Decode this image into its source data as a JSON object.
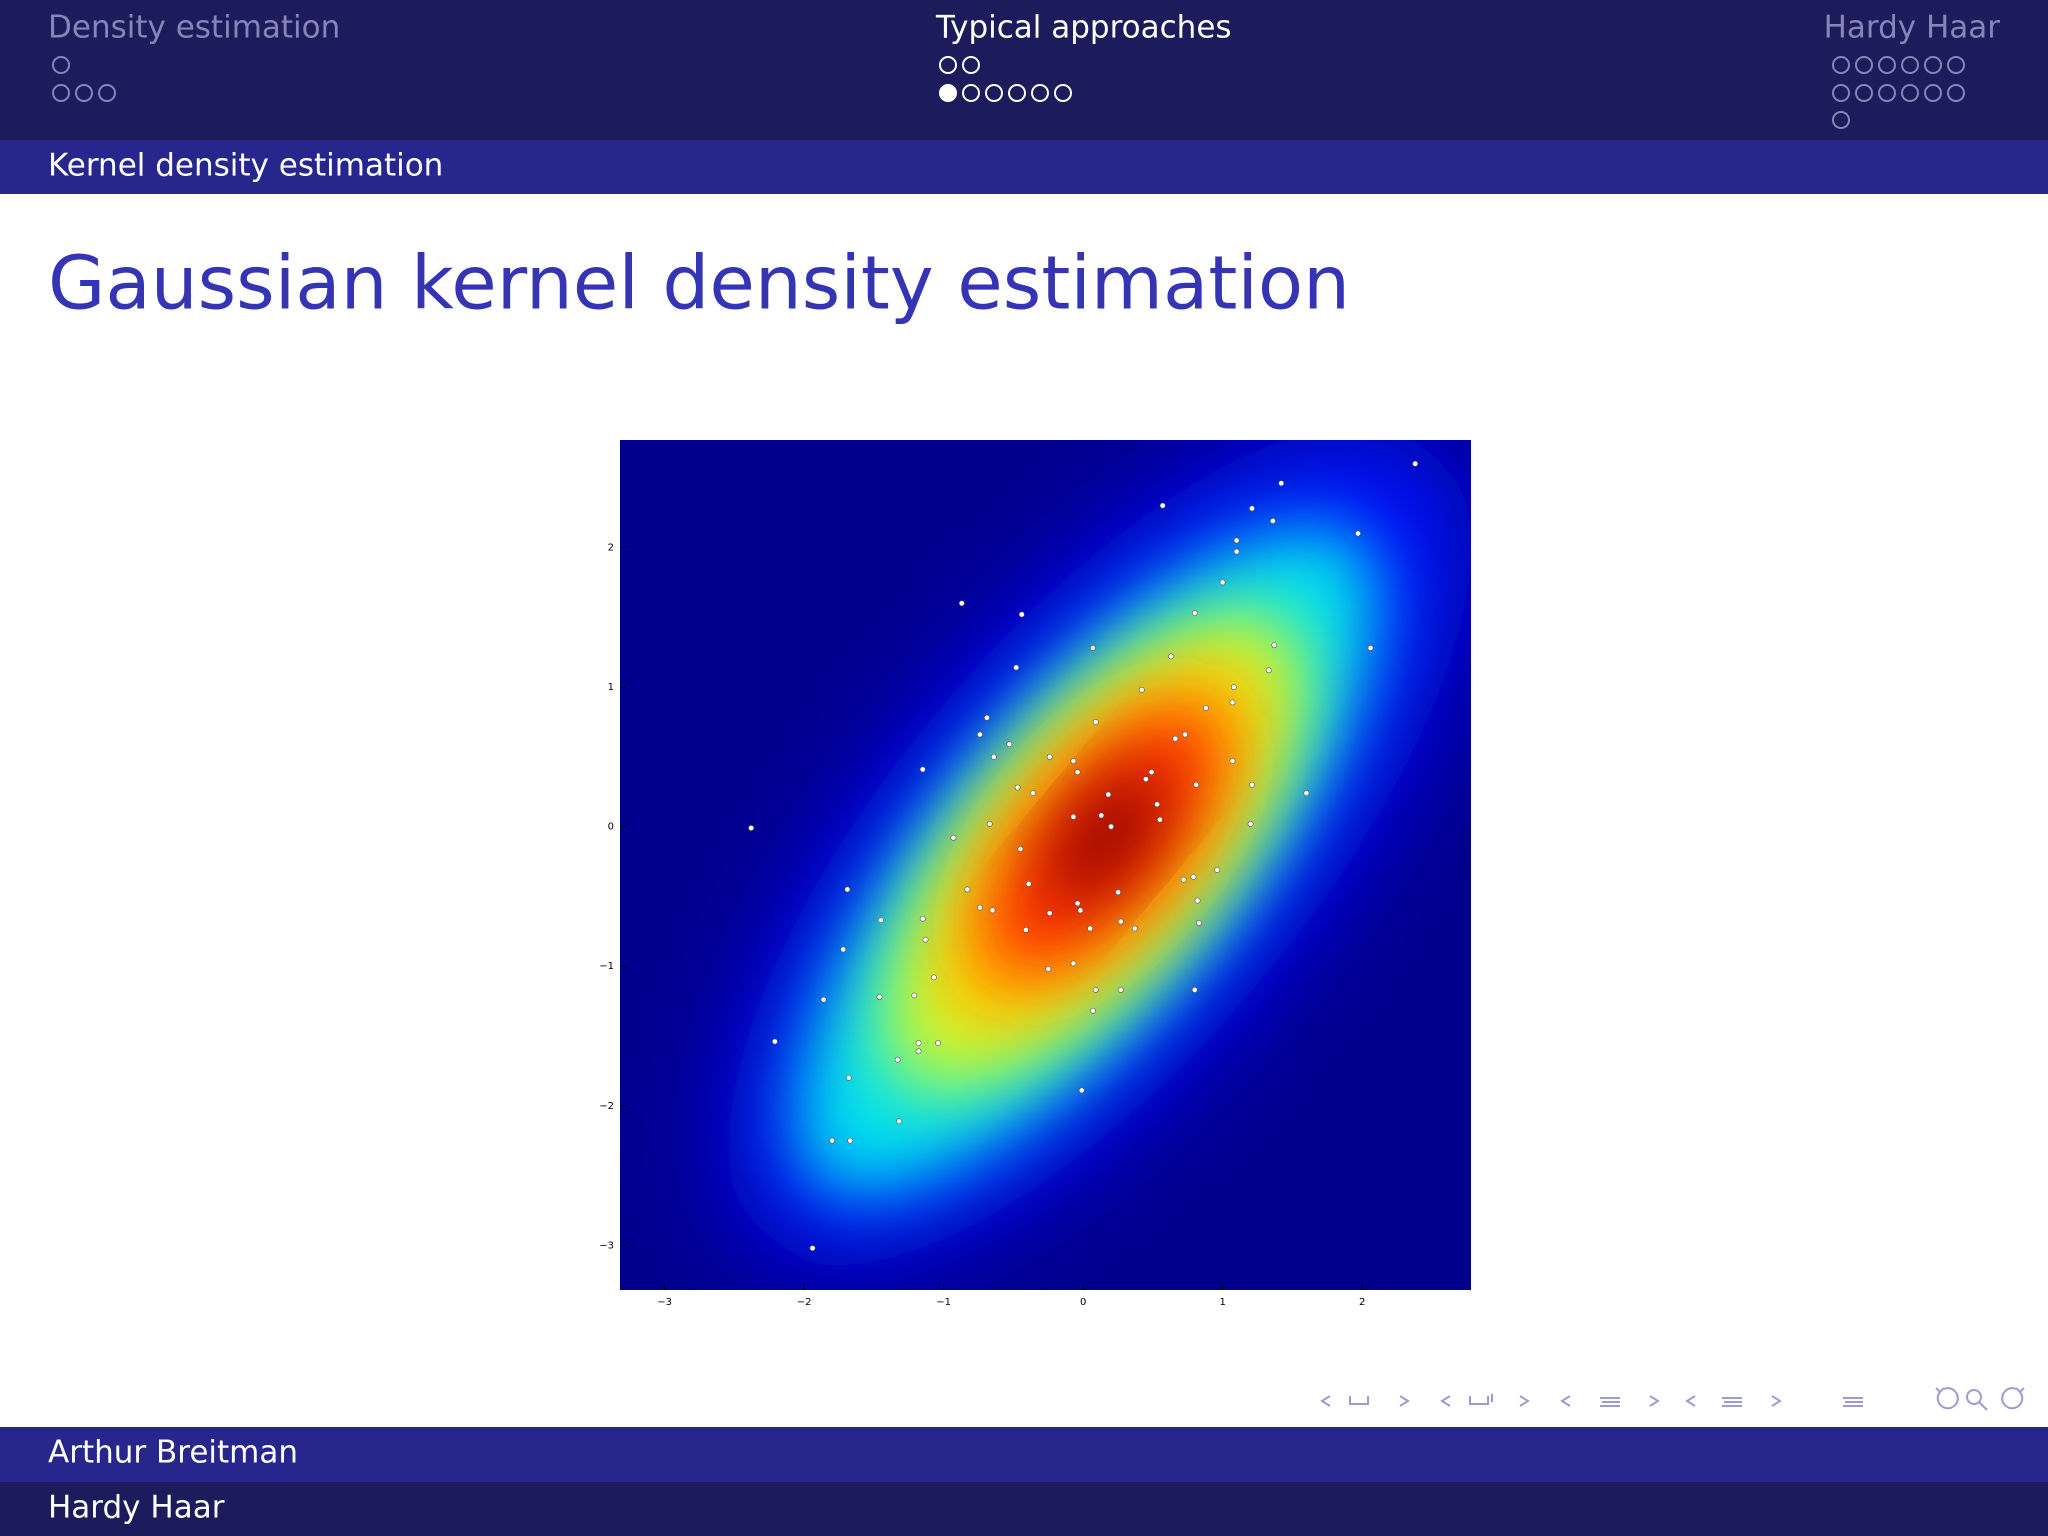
{
  "header": {
    "sections": [
      "Density estimation",
      "Typical approaches",
      "Hardy Haar"
    ],
    "subsection": "Kernel density estimation"
  },
  "slide": {
    "title": "Gaussian kernel density estimation"
  },
  "footer": {
    "author": "Arthur Breitman",
    "institute": "Hardy Haar"
  },
  "chart_data": {
    "type": "scatter",
    "x": [
      0.57,
      1.21,
      1.42,
      1.36,
      2.38,
      1.97,
      1.1,
      1.1,
      1.0,
      -0.87,
      -0.44,
      0.8,
      0.07,
      1.37,
      2.06,
      0.63,
      1.33,
      -0.48,
      0.42,
      1.08,
      1.07,
      0.88,
      -0.69,
      0.09,
      -0.74,
      0.73,
      0.66,
      -0.53,
      -0.64,
      -0.24,
      -0.07,
      1.07,
      -1.15,
      -0.04,
      0.49,
      0.45,
      -0.47,
      -0.36,
      0.81,
      1.21,
      1.6,
      0.18,
      0.53,
      0.13,
      -0.07,
      0.55,
      0.2,
      -2.38,
      -0.67,
      1.2,
      -0.93,
      -0.45,
      0.96,
      0.72,
      0.79,
      -0.39,
      -1.69,
      -0.83,
      0.25,
      -0.04,
      0.82,
      -0.02,
      -0.74,
      -0.65,
      -0.24,
      -1.45,
      -1.15,
      0.27,
      0.83,
      0.05,
      0.37,
      -0.41,
      -1.13,
      -1.72,
      -0.07,
      -0.25,
      -1.07,
      0.09,
      0.27,
      0.8,
      -1.21,
      -1.46,
      -1.86,
      0.07,
      -2.21,
      -1.18,
      -1.04,
      -1.18,
      -1.33,
      -1.68,
      -0.01,
      -1.32,
      -1.8,
      -1.67,
      -1.94
    ],
    "values": [
      2.3,
      2.28,
      2.46,
      2.19,
      2.6,
      2.1,
      2.05,
      1.97,
      1.75,
      1.6,
      1.52,
      1.53,
      1.28,
      1.3,
      1.28,
      1.22,
      1.12,
      1.14,
      0.98,
      1.0,
      0.89,
      0.85,
      0.78,
      0.75,
      0.66,
      0.66,
      0.63,
      0.59,
      0.5,
      0.5,
      0.47,
      0.47,
      0.41,
      0.39,
      0.39,
      0.34,
      0.28,
      0.24,
      0.3,
      0.3,
      0.24,
      0.23,
      0.16,
      0.08,
      0.07,
      0.05,
      0.0,
      -0.01,
      0.02,
      0.02,
      -0.08,
      -0.16,
      -0.31,
      -0.38,
      -0.36,
      -0.41,
      -0.45,
      -0.45,
      -0.47,
      -0.55,
      -0.53,
      -0.6,
      -0.58,
      -0.6,
      -0.62,
      -0.67,
      -0.66,
      -0.68,
      -0.69,
      -0.73,
      -0.73,
      -0.74,
      -0.81,
      -0.88,
      -0.98,
      -1.02,
      -1.08,
      -1.17,
      -1.17,
      -1.17,
      -1.21,
      -1.22,
      -1.24,
      -1.32,
      -1.54,
      -1.55,
      -1.55,
      -1.61,
      -1.67,
      -1.8,
      -1.89,
      -2.11,
      -2.25,
      -2.25,
      -3.02
    ],
    "color": "#ffffff",
    "xlim": [
      -3.32,
      2.78
    ],
    "ylim": [
      -3.32,
      2.77
    ],
    "xticks": [
      {
        "value": -3,
        "label": "−3"
      },
      {
        "value": -2,
        "label": "−2"
      },
      {
        "value": -1,
        "label": "−1"
      },
      0,
      1,
      2
    ],
    "yticks": [
      {
        "value": -3,
        "label": "−3"
      },
      {
        "value": -2,
        "label": "−2"
      },
      {
        "value": -1,
        "label": "−1"
      },
      0,
      1,
      2
    ],
    "grid": false
  }
}
